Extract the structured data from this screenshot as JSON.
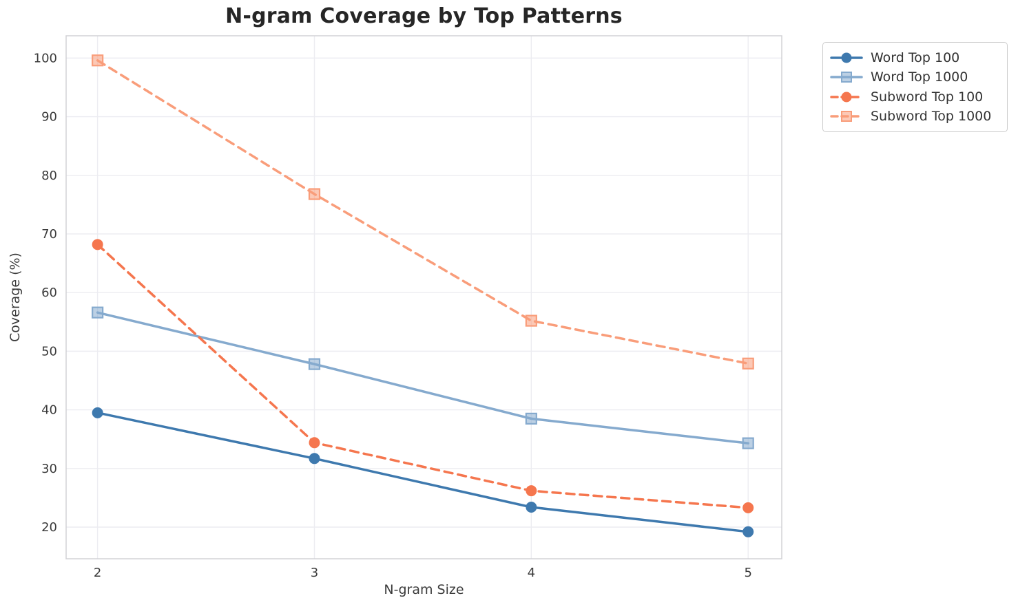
{
  "chart_data": {
    "type": "line",
    "title": "N-gram Coverage by Top Patterns",
    "xlabel": "N-gram Size",
    "ylabel": "Coverage (%)",
    "x": [
      2,
      3,
      4,
      5
    ],
    "x_tick_labels": [
      "2",
      "3",
      "4",
      "5"
    ],
    "y_ticks": [
      20,
      30,
      40,
      50,
      60,
      70,
      80,
      90,
      100
    ],
    "xlim": [
      1.855,
      5.155
    ],
    "ylim": [
      14.6,
      103.8
    ],
    "grid": "on",
    "legend_position": "outside-top-right",
    "colors": {
      "grid": "#ececf1",
      "spine": "#d2d2d6",
      "title_text": "#262626",
      "tick_text": "#3b3b3b"
    },
    "series": [
      {
        "name": "Word Top 100",
        "values": [
          39.5,
          31.7,
          23.4,
          19.2
        ],
        "color": "#3e79ae",
        "line_style": "solid",
        "marker": "circle"
      },
      {
        "name": "Word Top 1000",
        "values": [
          56.6,
          47.8,
          38.5,
          34.3
        ],
        "color": "#85aace",
        "line_style": "solid",
        "marker": "square"
      },
      {
        "name": "Subword Top 100",
        "values": [
          68.2,
          34.4,
          26.2,
          23.3
        ],
        "color": "#f5764e",
        "line_style": "dashed",
        "marker": "circle"
      },
      {
        "name": "Subword Top 1000",
        "values": [
          99.6,
          76.8,
          55.2,
          47.9
        ],
        "color": "#f99d7a",
        "line_style": "dashed",
        "marker": "square"
      }
    ]
  }
}
